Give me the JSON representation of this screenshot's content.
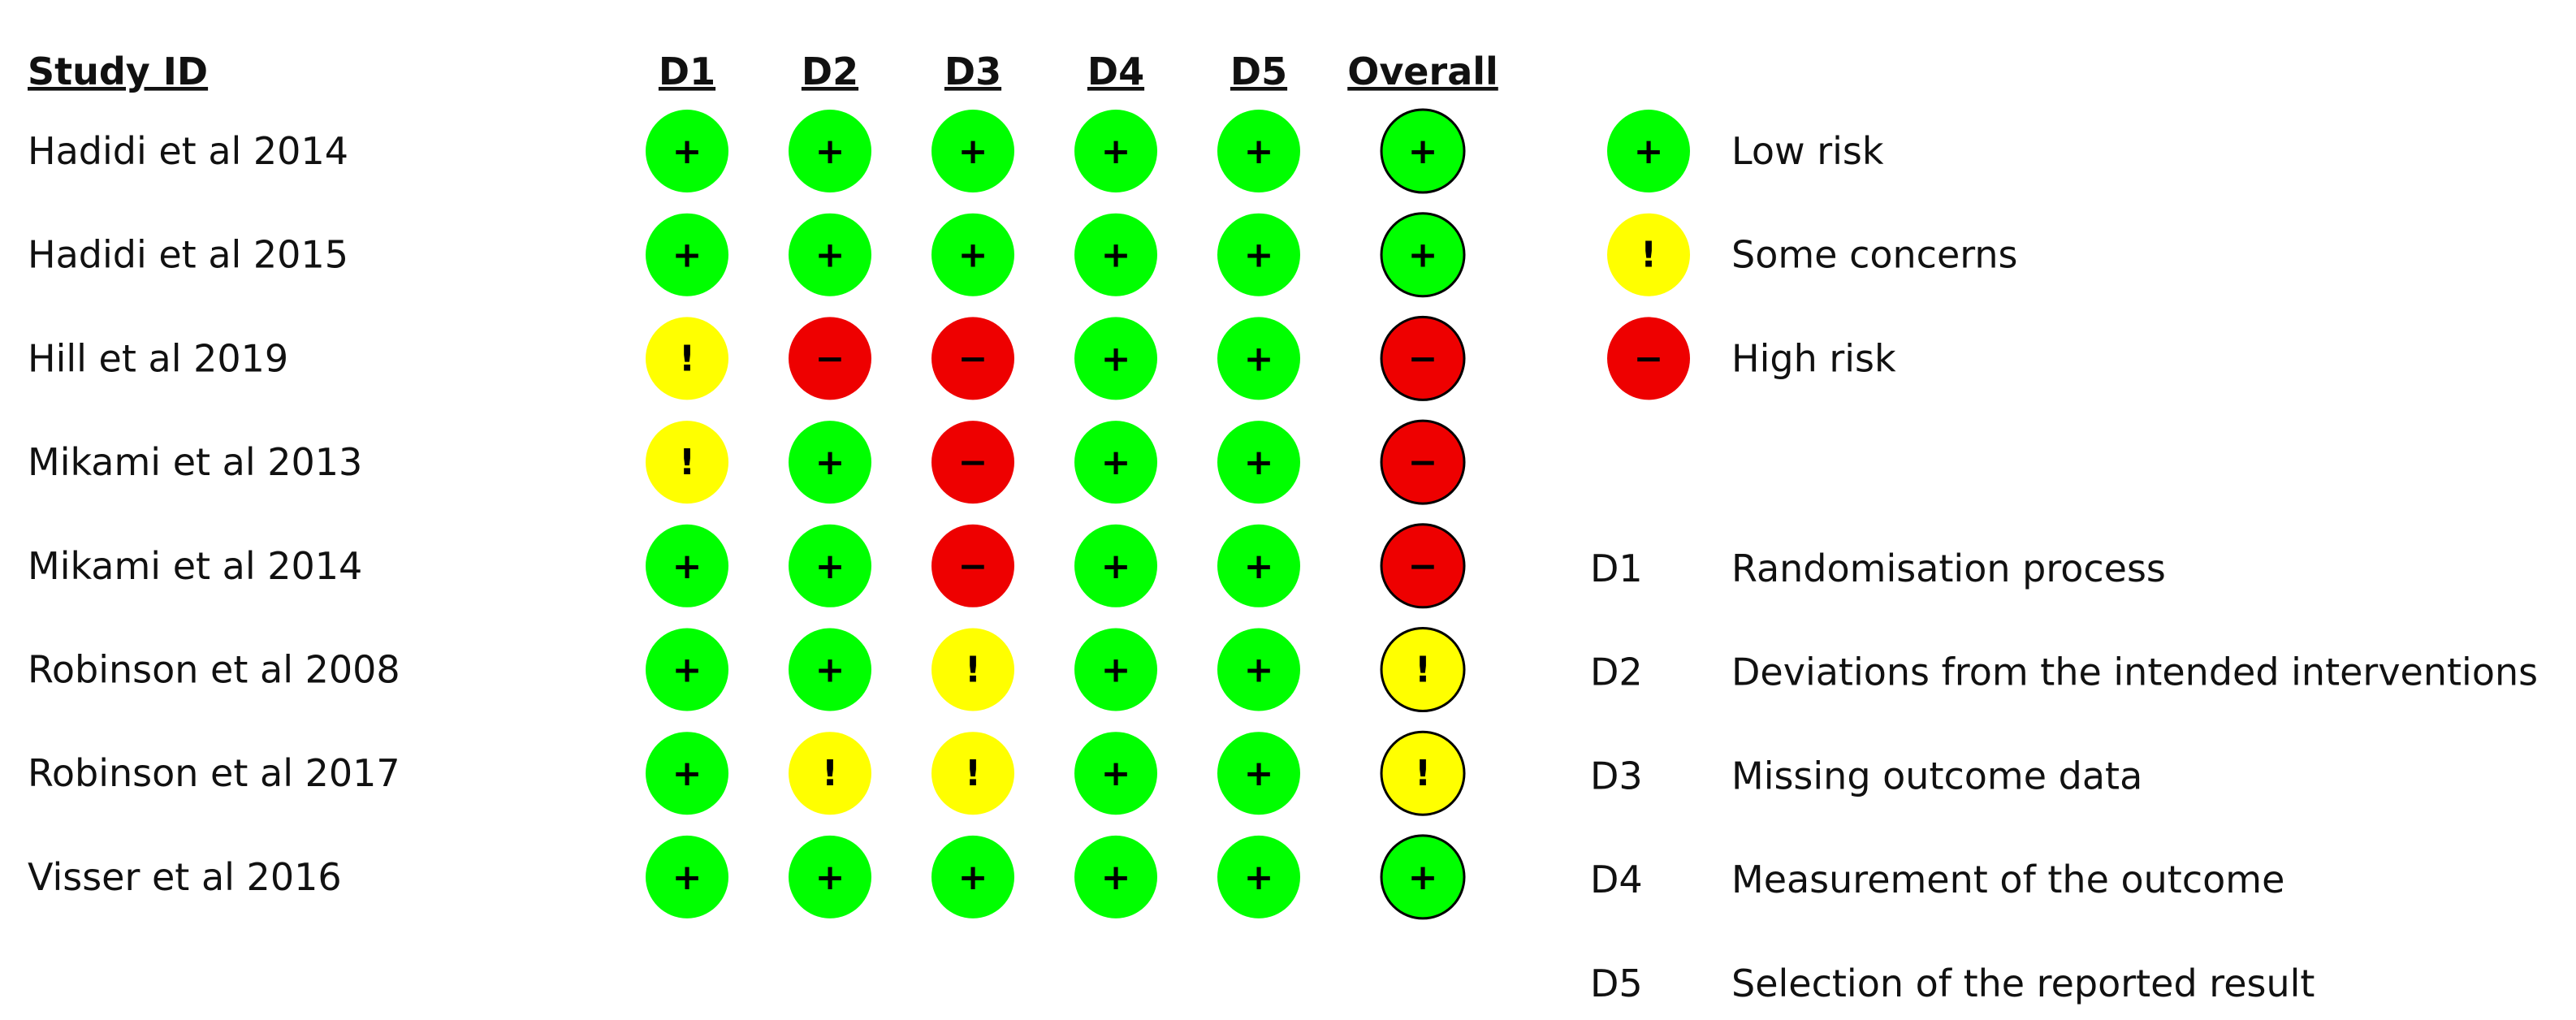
{
  "chart_data": {
    "type": "table",
    "title": "",
    "headers": {
      "study": "Study ID",
      "domains": [
        "D1",
        "D2",
        "D3",
        "D4",
        "D5"
      ],
      "overall": "Overall"
    },
    "studies": [
      {
        "name": "Hadidi et al 2014",
        "ratings": [
          "low",
          "low",
          "low",
          "low",
          "low"
        ],
        "overall": "low"
      },
      {
        "name": "Hadidi et al 2015",
        "ratings": [
          "low",
          "low",
          "low",
          "low",
          "low"
        ],
        "overall": "low"
      },
      {
        "name": "Hill et al 2019",
        "ratings": [
          "some",
          "high",
          "high",
          "low",
          "low"
        ],
        "overall": "high"
      },
      {
        "name": "Mikami et al 2013",
        "ratings": [
          "some",
          "low",
          "high",
          "low",
          "low"
        ],
        "overall": "high"
      },
      {
        "name": "Mikami et al 2014",
        "ratings": [
          "low",
          "low",
          "high",
          "low",
          "low"
        ],
        "overall": "high"
      },
      {
        "name": "Robinson et al 2008",
        "ratings": [
          "low",
          "low",
          "some",
          "low",
          "low"
        ],
        "overall": "some"
      },
      {
        "name": "Robinson et al 2017",
        "ratings": [
          "low",
          "some",
          "some",
          "low",
          "low"
        ],
        "overall": "some"
      },
      {
        "name": "Visser et al 2016",
        "ratings": [
          "low",
          "low",
          "low",
          "low",
          "low"
        ],
        "overall": "low"
      }
    ],
    "legend": [
      {
        "key": "low",
        "label": "Low risk"
      },
      {
        "key": "some",
        "label": "Some concerns"
      },
      {
        "key": "high",
        "label": "High risk"
      }
    ],
    "symbols": {
      "low": "+",
      "some": "!",
      "high": "−"
    },
    "colors": {
      "low": "#00ff00",
      "some": "#ffff00",
      "high": "#ee0000"
    },
    "domain_definitions": [
      {
        "code": "D1",
        "label": "Randomisation process"
      },
      {
        "code": "D2",
        "label": "Deviations from the intended interventions"
      },
      {
        "code": "D3",
        "label": "Missing outcome data"
      },
      {
        "code": "D4",
        "label": "Measurement of the outcome"
      },
      {
        "code": "D5",
        "label": "Selection of the reported result"
      }
    ]
  }
}
